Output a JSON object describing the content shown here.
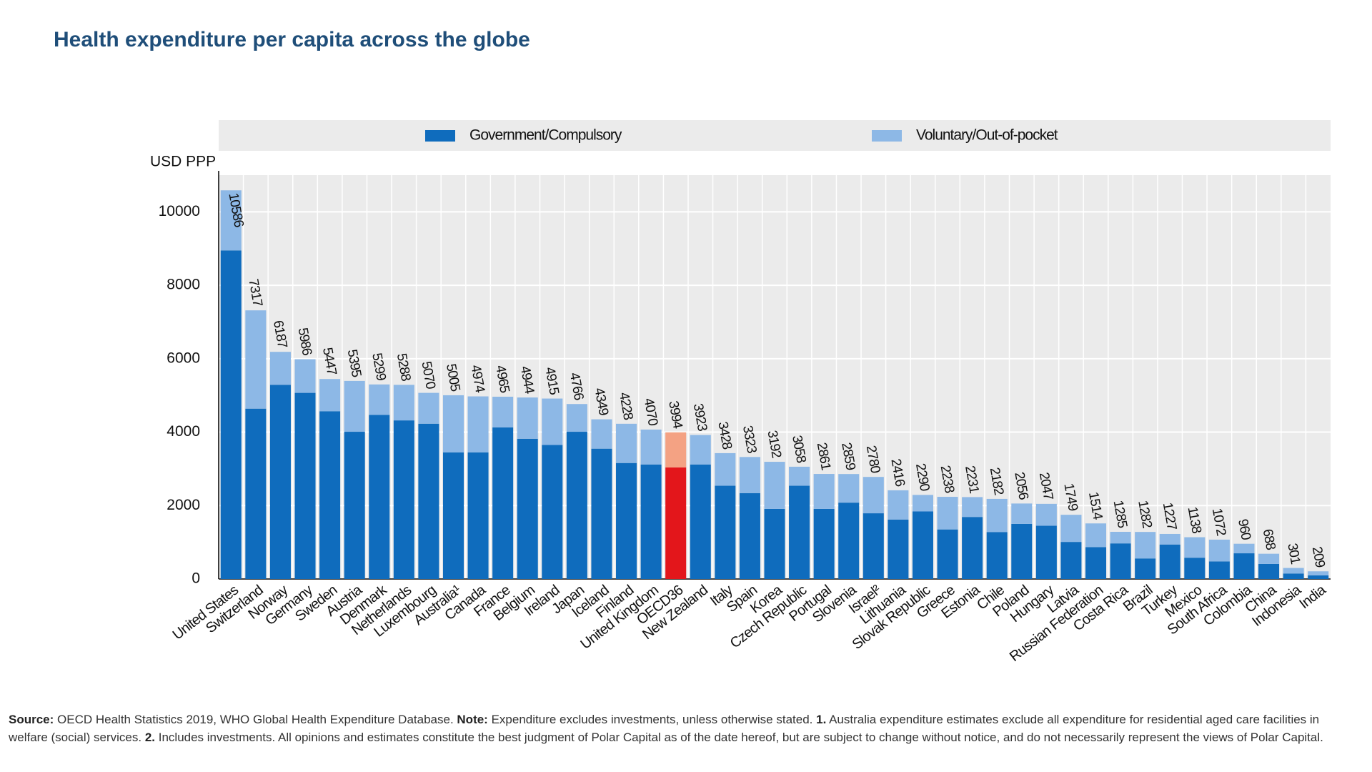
{
  "chart_data": {
    "type": "stacked_bar",
    "title": "Health expenditure per capita across the globe",
    "y_label": "USD PPP",
    "categories": [
      "United States",
      "Switzerland",
      "Norway",
      "Germany",
      "Sweden",
      "Austria",
      "Denmark",
      "Netherlands",
      "Luxembourg",
      "Australia¹",
      "Canada",
      "France",
      "Belgium",
      "Ireland",
      "Japan",
      "Iceland",
      "Finland",
      "United Kingdom",
      "OECD36",
      "New Zealand",
      "Italy",
      "Spain",
      "Korea",
      "Czech Republic",
      "Portugal",
      "Slovenia",
      "Israel²",
      "Lithuania",
      "Slovak Republic",
      "Greece",
      "Estonia",
      "Chile",
      "Poland",
      "Hungary",
      "Latvia",
      "Russian Federation",
      "Costa Rica",
      "Brazil",
      "Turkey",
      "Mexico",
      "South Africa",
      "Colombia",
      "China",
      "Indonesia",
      "India"
    ],
    "series": [
      {
        "name": "Government/Compulsory",
        "color": "#0f6cbd",
        "highlight_color": "#e3161b",
        "values": [
          8950,
          4640,
          5290,
          5070,
          4570,
          4010,
          4470,
          4320,
          4230,
          3450,
          3450,
          4130,
          3820,
          3650,
          4010,
          3550,
          3160,
          3120,
          3040,
          3120,
          2540,
          2340,
          1910,
          2540,
          1910,
          2080,
          1790,
          1620,
          1840,
          1350,
          1690,
          1280,
          1500,
          1450,
          1010,
          870,
          970,
          560,
          940,
          580,
          480,
          700,
          410,
          150,
          100
        ]
      },
      {
        "name": "Voluntary/Out-of-pocket",
        "color": "#8db8e6",
        "highlight_color": "#f4a283",
        "values": [
          1636,
          2677,
          897,
          916,
          877,
          1385,
          829,
          968,
          840,
          1555,
          1524,
          835,
          1124,
          1265,
          756,
          799,
          1068,
          950,
          954,
          803,
          888,
          983,
          1282,
          518,
          951,
          779,
          990,
          796,
          450,
          888,
          541,
          902,
          556,
          597,
          739,
          644,
          315,
          722,
          287,
          558,
          592,
          260,
          278,
          151,
          109
        ]
      }
    ],
    "totals": [
      10586,
      7317,
      6187,
      5986,
      5447,
      5395,
      5299,
      5288,
      5070,
      5005,
      4974,
      4965,
      4944,
      4915,
      4766,
      4349,
      4228,
      4070,
      3994,
      3923,
      3428,
      3323,
      3192,
      3058,
      2861,
      2859,
      2780,
      2416,
      2290,
      2238,
      2231,
      2182,
      2056,
      2047,
      1749,
      1514,
      1285,
      1282,
      1227,
      1138,
      1072,
      960,
      688,
      301,
      209
    ],
    "highlight_category": "OECD36",
    "ylim": [
      0,
      11000
    ],
    "yticks": [
      0,
      2000,
      4000,
      6000,
      8000,
      10000
    ],
    "grid": true,
    "legend": "top",
    "footnote": [
      {
        "text": "Source:",
        "bold": true
      },
      {
        "text": " OECD Health Statistics 2019, WHO Global Health Expenditure Database. ",
        "bold": false
      },
      {
        "text": "Note:",
        "bold": true
      },
      {
        "text": " Expenditure excludes investments, unless otherwise stated. ",
        "bold": false
      },
      {
        "text": "1.",
        "bold": true
      },
      {
        "text": " Australia expenditure estimates exclude all expenditure for residential aged care facilities in welfare (social) services. ",
        "bold": false
      },
      {
        "text": "2.",
        "bold": true
      },
      {
        "text": " Includes investments. All opinions and estimates constitute the best judgment of Polar Capital as of the date hereof, but are subject to change without notice, and do not necessarily represent the views of Polar Capital.",
        "bold": false
      }
    ]
  }
}
